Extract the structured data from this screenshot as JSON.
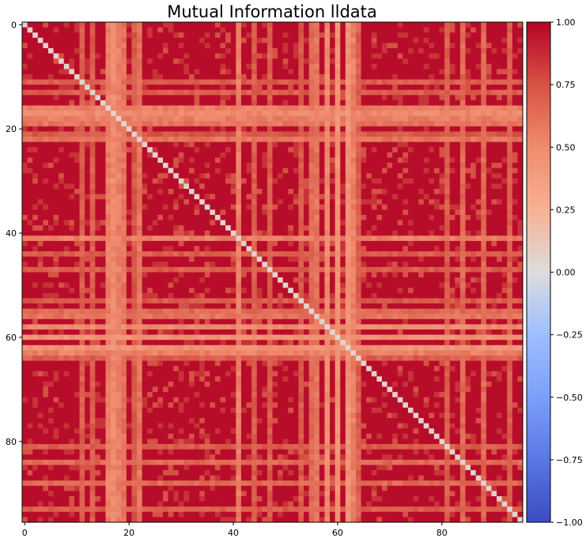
{
  "chart_data": {
    "type": "heatmap",
    "title": "Mutual Information lldata",
    "xlabel": "",
    "ylabel": "",
    "n": 96,
    "xlim": [
      -0.5,
      95.5
    ],
    "ylim": [
      95.5,
      -0.5
    ],
    "xticks": [
      0,
      20,
      40,
      60,
      80
    ],
    "yticks": [
      0,
      20,
      40,
      60,
      80
    ],
    "tick_labels_x": [
      "0",
      "20",
      "40",
      "60",
      "80"
    ],
    "tick_labels_y": [
      "0",
      "20",
      "40",
      "60",
      "80"
    ],
    "colormap": "coolwarm",
    "vmin": -1.0,
    "vmax": 1.0,
    "colorbar": {
      "ticks": [
        1.0,
        0.75,
        0.5,
        0.25,
        0.0,
        -0.25,
        -0.5,
        -0.75,
        -1.0
      ],
      "labels": [
        "1.00",
        "0.75",
        "0.50",
        "0.25",
        "0.00",
        "−0.25",
        "−0.50",
        "−0.75",
        "−1.00"
      ]
    },
    "diagonal_value": 0.05,
    "low_mi_features": {
      "16": 0.55,
      "17": 0.5,
      "18": 0.55,
      "19": 0.6,
      "22": 0.6,
      "41": 0.55,
      "56": 0.6,
      "58": 0.5,
      "60": 0.45,
      "62": 0.45,
      "63": 0.55,
      "11": 0.7,
      "13": 0.7,
      "21": 0.72,
      "44": 0.7,
      "47": 0.7,
      "53": 0.72,
      "55": 0.65,
      "64": 0.7,
      "81": 0.7,
      "84": 0.65,
      "88": 0.65,
      "93": 0.7
    },
    "base_value": 0.95
  }
}
